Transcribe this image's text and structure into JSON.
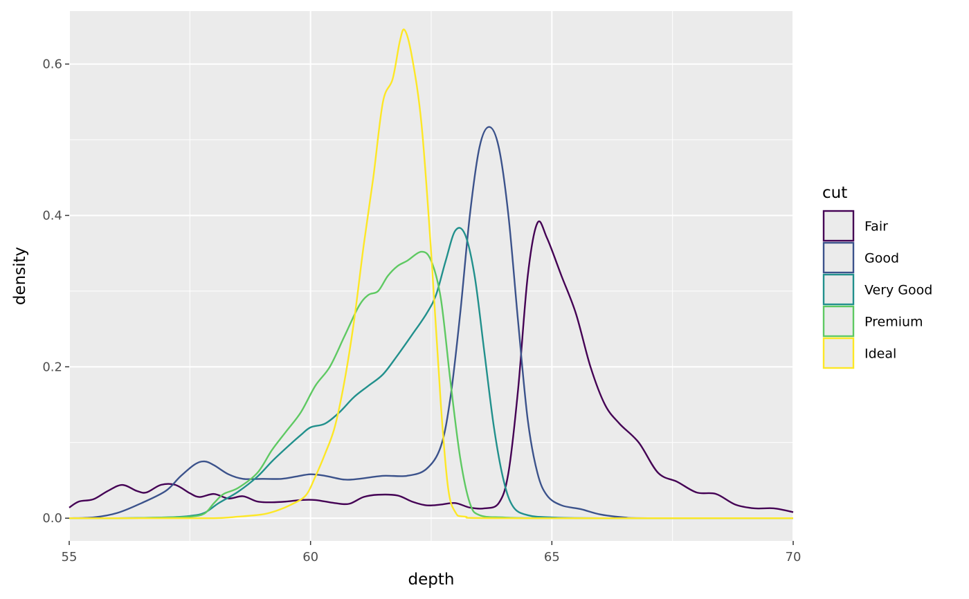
{
  "chart_data": {
    "type": "line",
    "title": "",
    "xlabel": "depth",
    "ylabel": "density",
    "xlim": [
      55,
      70
    ],
    "ylim": [
      -0.03,
      0.67
    ],
    "x_ticks": [
      55,
      60,
      65,
      70
    ],
    "x_tick_labels": [
      "55",
      "60",
      "65",
      "70"
    ],
    "y_ticks": [
      0.0,
      0.2,
      0.4,
      0.6
    ],
    "y_tick_labels": [
      "0.0",
      "0.2",
      "0.4",
      "0.6"
    ],
    "grid": true,
    "legend": {
      "title": "cut",
      "position": "right"
    },
    "series": [
      {
        "name": "Fair",
        "color": "#440154",
        "points": [
          [
            55,
            0.014
          ],
          [
            55.2,
            0.022
          ],
          [
            55.5,
            0.025
          ],
          [
            55.8,
            0.036
          ],
          [
            56.1,
            0.044
          ],
          [
            56.4,
            0.036
          ],
          [
            56.6,
            0.034
          ],
          [
            56.9,
            0.044
          ],
          [
            57.2,
            0.044
          ],
          [
            57.5,
            0.033
          ],
          [
            57.7,
            0.028
          ],
          [
            58.0,
            0.032
          ],
          [
            58.3,
            0.026
          ],
          [
            58.6,
            0.029
          ],
          [
            58.9,
            0.022
          ],
          [
            59.2,
            0.021
          ],
          [
            59.5,
            0.022
          ],
          [
            59.8,
            0.024
          ],
          [
            60.1,
            0.024
          ],
          [
            60.5,
            0.02
          ],
          [
            60.8,
            0.019
          ],
          [
            61.1,
            0.028
          ],
          [
            61.4,
            0.031
          ],
          [
            61.8,
            0.03
          ],
          [
            62.1,
            0.022
          ],
          [
            62.4,
            0.017
          ],
          [
            62.7,
            0.018
          ],
          [
            63.0,
            0.02
          ],
          [
            63.3,
            0.014
          ],
          [
            63.6,
            0.013
          ],
          [
            63.9,
            0.02
          ],
          [
            64.1,
            0.06
          ],
          [
            64.3,
            0.17
          ],
          [
            64.5,
            0.32
          ],
          [
            64.7,
            0.39
          ],
          [
            64.9,
            0.37
          ],
          [
            65.2,
            0.32
          ],
          [
            65.5,
            0.27
          ],
          [
            65.8,
            0.2
          ],
          [
            66.1,
            0.15
          ],
          [
            66.4,
            0.125
          ],
          [
            66.8,
            0.1
          ],
          [
            67.2,
            0.06
          ],
          [
            67.6,
            0.048
          ],
          [
            68.0,
            0.034
          ],
          [
            68.4,
            0.032
          ],
          [
            68.8,
            0.018
          ],
          [
            69.2,
            0.013
          ],
          [
            69.6,
            0.013
          ],
          [
            70.0,
            0.008
          ]
        ]
      },
      {
        "name": "Good",
        "color": "#3b528b",
        "points": [
          [
            55,
            0.0
          ],
          [
            55.5,
            0.001
          ],
          [
            56.0,
            0.007
          ],
          [
            56.5,
            0.02
          ],
          [
            57.0,
            0.036
          ],
          [
            57.3,
            0.055
          ],
          [
            57.6,
            0.071
          ],
          [
            57.8,
            0.075
          ],
          [
            58.0,
            0.07
          ],
          [
            58.3,
            0.058
          ],
          [
            58.6,
            0.052
          ],
          [
            59.0,
            0.052
          ],
          [
            59.4,
            0.052
          ],
          [
            59.7,
            0.055
          ],
          [
            60.0,
            0.058
          ],
          [
            60.3,
            0.056
          ],
          [
            60.7,
            0.051
          ],
          [
            61.0,
            0.052
          ],
          [
            61.5,
            0.056
          ],
          [
            62.0,
            0.056
          ],
          [
            62.4,
            0.065
          ],
          [
            62.7,
            0.095
          ],
          [
            62.9,
            0.16
          ],
          [
            63.1,
            0.27
          ],
          [
            63.3,
            0.4
          ],
          [
            63.5,
            0.49
          ],
          [
            63.7,
            0.517
          ],
          [
            63.9,
            0.49
          ],
          [
            64.1,
            0.4
          ],
          [
            64.3,
            0.26
          ],
          [
            64.5,
            0.13
          ],
          [
            64.7,
            0.06
          ],
          [
            64.9,
            0.03
          ],
          [
            65.2,
            0.017
          ],
          [
            65.6,
            0.012
          ],
          [
            66.0,
            0.005
          ],
          [
            66.5,
            0.001
          ],
          [
            67.0,
            0.0
          ],
          [
            70.0,
            0.0
          ]
        ]
      },
      {
        "name": "Very Good",
        "color": "#21908c",
        "points": [
          [
            55,
            0.0
          ],
          [
            56,
            0.0
          ],
          [
            57,
            0.001
          ],
          [
            57.5,
            0.003
          ],
          [
            57.8,
            0.007
          ],
          [
            58.1,
            0.02
          ],
          [
            58.5,
            0.035
          ],
          [
            58.9,
            0.055
          ],
          [
            59.2,
            0.075
          ],
          [
            59.5,
            0.093
          ],
          [
            59.8,
            0.11
          ],
          [
            60.0,
            0.12
          ],
          [
            60.3,
            0.125
          ],
          [
            60.6,
            0.14
          ],
          [
            60.9,
            0.16
          ],
          [
            61.2,
            0.175
          ],
          [
            61.5,
            0.19
          ],
          [
            61.8,
            0.215
          ],
          [
            62.1,
            0.242
          ],
          [
            62.4,
            0.27
          ],
          [
            62.6,
            0.295
          ],
          [
            62.8,
            0.34
          ],
          [
            63.0,
            0.38
          ],
          [
            63.2,
            0.375
          ],
          [
            63.4,
            0.32
          ],
          [
            63.6,
            0.22
          ],
          [
            63.8,
            0.12
          ],
          [
            64.0,
            0.05
          ],
          [
            64.2,
            0.015
          ],
          [
            64.5,
            0.004
          ],
          [
            65.0,
            0.001
          ],
          [
            66.0,
            0.0
          ],
          [
            70.0,
            0.0
          ]
        ]
      },
      {
        "name": "Premium",
        "color": "#5ec962",
        "points": [
          [
            55,
            0.0
          ],
          [
            56,
            0.0
          ],
          [
            57,
            0.001
          ],
          [
            57.5,
            0.002
          ],
          [
            57.8,
            0.006
          ],
          [
            58.0,
            0.02
          ],
          [
            58.2,
            0.032
          ],
          [
            58.5,
            0.04
          ],
          [
            58.9,
            0.06
          ],
          [
            59.2,
            0.09
          ],
          [
            59.5,
            0.115
          ],
          [
            59.8,
            0.14
          ],
          [
            60.1,
            0.175
          ],
          [
            60.4,
            0.2
          ],
          [
            60.7,
            0.24
          ],
          [
            61.0,
            0.28
          ],
          [
            61.2,
            0.295
          ],
          [
            61.4,
            0.3
          ],
          [
            61.6,
            0.32
          ],
          [
            61.8,
            0.333
          ],
          [
            62.0,
            0.34
          ],
          [
            62.3,
            0.352
          ],
          [
            62.5,
            0.34
          ],
          [
            62.7,
            0.29
          ],
          [
            62.9,
            0.18
          ],
          [
            63.1,
            0.08
          ],
          [
            63.3,
            0.02
          ],
          [
            63.5,
            0.004
          ],
          [
            64.0,
            0.001
          ],
          [
            65.0,
            0.0
          ],
          [
            70.0,
            0.0
          ]
        ]
      },
      {
        "name": "Ideal",
        "color": "#fde725",
        "points": [
          [
            55,
            0.0
          ],
          [
            56,
            0.0
          ],
          [
            57,
            0.0
          ],
          [
            58.0,
            0.0
          ],
          [
            58.5,
            0.002
          ],
          [
            59.0,
            0.005
          ],
          [
            59.3,
            0.01
          ],
          [
            59.6,
            0.018
          ],
          [
            59.9,
            0.03
          ],
          [
            60.1,
            0.055
          ],
          [
            60.3,
            0.085
          ],
          [
            60.5,
            0.12
          ],
          [
            60.7,
            0.18
          ],
          [
            60.9,
            0.26
          ],
          [
            61.1,
            0.36
          ],
          [
            61.3,
            0.45
          ],
          [
            61.5,
            0.55
          ],
          [
            61.7,
            0.58
          ],
          [
            61.85,
            0.63
          ],
          [
            61.95,
            0.645
          ],
          [
            62.1,
            0.61
          ],
          [
            62.3,
            0.52
          ],
          [
            62.5,
            0.35
          ],
          [
            62.7,
            0.15
          ],
          [
            62.85,
            0.04
          ],
          [
            63.0,
            0.008
          ],
          [
            63.2,
            0.002
          ],
          [
            64.0,
            0.0
          ],
          [
            70.0,
            0.0
          ]
        ]
      }
    ]
  }
}
